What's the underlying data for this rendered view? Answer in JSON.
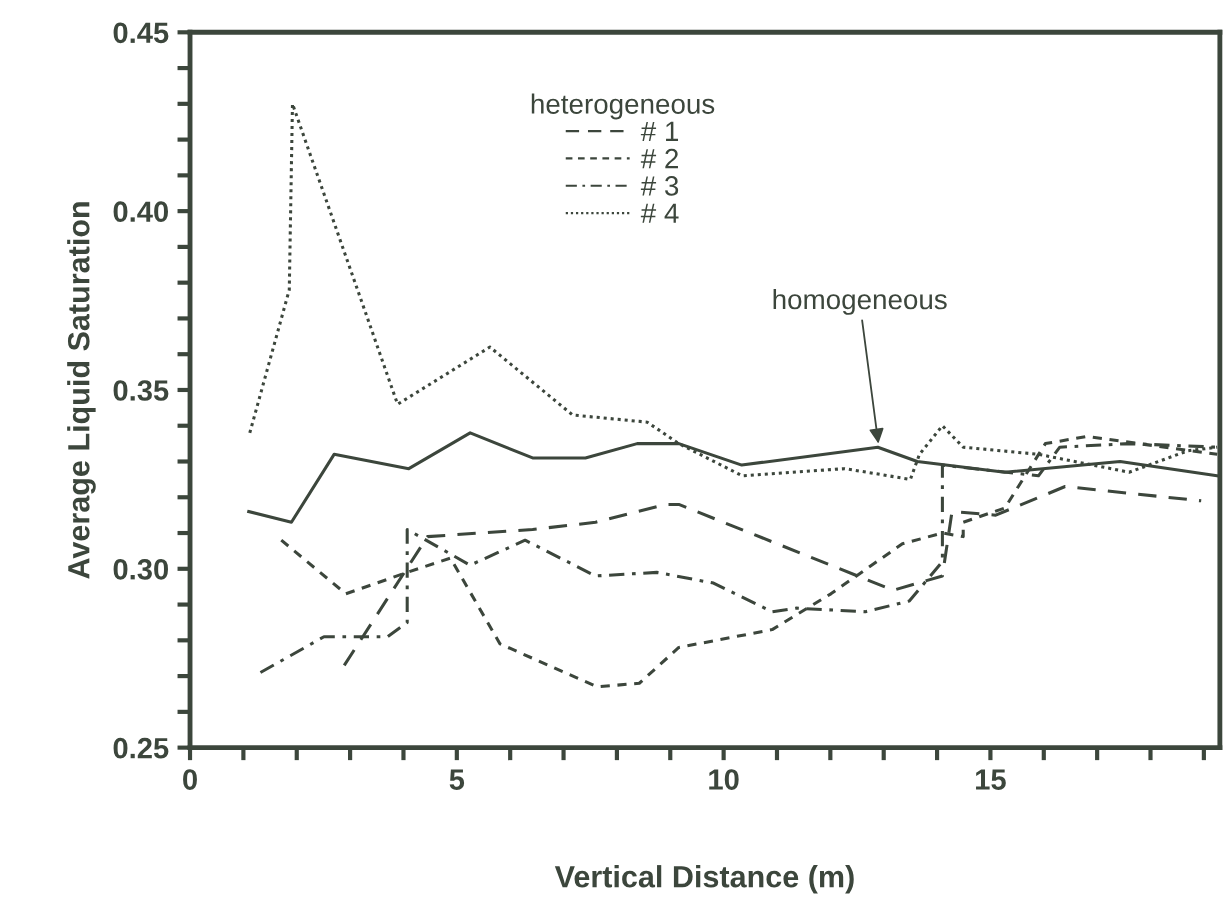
{
  "chart_data": {
    "type": "line",
    "xlabel": "Vertical Distance (m)",
    "ylabel": "Average Liquid Saturation",
    "legend_title": "heterogeneous",
    "legend": "top center",
    "grid": false,
    "xlim": [
      0,
      19.3
    ],
    "ylim": [
      0.25,
      0.45
    ],
    "xticks": [
      0,
      {
        "value": 1,
        "label": null
      },
      {
        "value": 2,
        "label": null
      },
      {
        "value": 3,
        "label": null
      },
      {
        "value": 4,
        "label": null
      },
      5,
      {
        "value": 6,
        "label": null
      },
      {
        "value": 7,
        "label": null
      },
      {
        "value": 8,
        "label": null
      },
      {
        "value": 9,
        "label": null
      },
      10,
      {
        "value": 11,
        "label": null
      },
      {
        "value": 12,
        "label": null
      },
      {
        "value": 13,
        "label": null
      },
      {
        "value": 14,
        "label": null
      },
      15,
      {
        "value": 16,
        "label": null
      },
      {
        "value": 17,
        "label": null
      },
      {
        "value": 18,
        "label": null
      },
      {
        "value": 19,
        "label": null
      }
    ],
    "yticks": [
      {
        "value": 0.25,
        "label": "0.25"
      },
      {
        "value": 0.26,
        "label": null
      },
      {
        "value": 0.27,
        "label": null
      },
      {
        "value": 0.28,
        "label": null
      },
      {
        "value": 0.29,
        "label": null
      },
      {
        "value": 0.3,
        "label": "0.30"
      },
      {
        "value": 0.31,
        "label": null
      },
      {
        "value": 0.32,
        "label": null
      },
      {
        "value": 0.33,
        "label": null
      },
      {
        "value": 0.34,
        "label": null
      },
      {
        "value": 0.35,
        "label": "0.35"
      },
      {
        "value": 0.36,
        "label": null
      },
      {
        "value": 0.37,
        "label": null
      },
      {
        "value": 0.38,
        "label": null
      },
      {
        "value": 0.39,
        "label": null
      },
      {
        "value": 0.4,
        "label": "0.40"
      },
      {
        "value": 0.41,
        "label": null
      },
      {
        "value": 0.42,
        "label": null
      },
      {
        "value": 0.43,
        "label": null
      },
      {
        "value": 0.44,
        "label": null
      },
      {
        "value": 0.45,
        "label": "0.45"
      }
    ],
    "annotations": [
      {
        "text": "homogeneous",
        "x": 12.9,
        "y": 0.335
      }
    ],
    "series": [
      {
        "name": "# 1",
        "color": "#3c463c",
        "line_style": "dashed",
        "x": [
          2.89,
          4.45,
          6.42,
          7.6,
          8.92,
          9.16,
          13.18,
          14.1,
          14.28,
          15.1,
          16.4,
          18.95
        ],
        "values": [
          0.273,
          0.309,
          0.311,
          0.313,
          0.318,
          0.318,
          0.294,
          0.298,
          0.316,
          0.315,
          0.323,
          0.319
        ]
      },
      {
        "name": "# 2",
        "color": "#3c463c",
        "line_style": "short dashed",
        "x": [
          1.71,
          2.92,
          4.07,
          4.88,
          5.81,
          7.63,
          8.42,
          9.16,
          10.91,
          12.01,
          13.35,
          14.1,
          14.49,
          14.49,
          15.27,
          16.03,
          16.81,
          19.25
        ],
        "values": [
          0.308,
          0.293,
          0.299,
          0.303,
          0.279,
          0.267,
          0.268,
          0.278,
          0.283,
          0.293,
          0.307,
          0.31,
          0.309,
          0.313,
          0.317,
          0.335,
          0.337,
          0.332
        ]
      },
      {
        "name": "# 3",
        "color": "#3c463c",
        "line_style": "dashdot",
        "x": [
          1.32,
          2.51,
          3.7,
          4.07,
          4.07,
          5.25,
          6.28,
          7.6,
          8.75,
          9.81,
          10.91,
          11.36,
          12.66,
          13.48,
          14.1,
          14.1,
          15.9,
          16.3,
          17.6,
          19.25
        ],
        "values": [
          0.271,
          0.281,
          0.281,
          0.285,
          0.311,
          0.301,
          0.308,
          0.298,
          0.299,
          0.296,
          0.288,
          0.289,
          0.288,
          0.291,
          0.302,
          0.329,
          0.326,
          0.334,
          0.335,
          0.334
        ]
      },
      {
        "name": "# 4",
        "color": "#3c463c",
        "line_style": "dotted",
        "x": [
          1.12,
          1.86,
          1.92,
          3.89,
          5.62,
          7.17,
          8.57,
          9.16,
          10.35,
          12.27,
          13.5,
          13.67,
          14.1,
          14.49,
          15.9,
          17.6,
          18.7,
          19.25
        ],
        "values": [
          0.338,
          0.378,
          0.43,
          0.346,
          0.362,
          0.343,
          0.341,
          0.335,
          0.326,
          0.328,
          0.325,
          0.332,
          0.34,
          0.334,
          0.332,
          0.327,
          0.333,
          0.334
        ]
      },
      {
        "color": "#3c463c",
        "line_style": "solid",
        "x": [
          1.1,
          1.9,
          2.7,
          4.1,
          5.25,
          6.42,
          7.41,
          8.38,
          9.16,
          10.34,
          12.89,
          13.63,
          15.27,
          17.43,
          19.25
        ],
        "values": [
          0.316,
          0.313,
          0.332,
          0.328,
          0.338,
          0.331,
          0.331,
          0.335,
          0.335,
          0.329,
          0.334,
          0.33,
          0.327,
          0.33,
          0.326
        ]
      }
    ]
  }
}
